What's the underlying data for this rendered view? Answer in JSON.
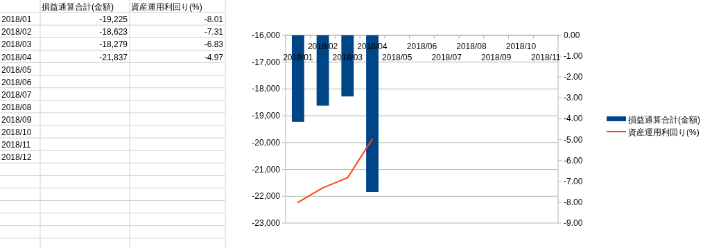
{
  "chart_data": [
    {
      "type": "other",
      "categories": [
        "2018/01",
        "2018/02",
        "2018/03",
        "2018/04",
        "2018/05",
        "2018/06",
        "2018/07",
        "2018/08",
        "2018/09",
        "2018/10",
        "2018/11",
        "2018/12"
      ],
      "series": [
        {
          "name": "損益通算合計(金額)",
          "values": [
            -19225,
            -18623,
            -18279,
            -21837,
            null,
            null,
            null,
            null,
            null,
            null,
            null,
            null
          ],
          "value_labels": [
            "-19,225",
            "-18,623",
            "-18,279",
            "-21,837",
            null,
            null,
            null,
            null,
            null,
            null,
            null,
            null
          ]
        },
        {
          "name": "資産運用利回り(%)",
          "values": [
            -8.01,
            -7.31,
            -6.83,
            -4.97,
            null,
            null,
            null,
            null,
            null,
            null,
            null,
            null
          ],
          "value_labels": [
            "-8.01",
            "-7.31",
            "-6.83",
            "-4.97",
            null,
            null,
            null,
            null,
            null,
            null,
            null,
            null
          ]
        }
      ]
    },
    {
      "type": "bar",
      "categories": [
        "2018/01",
        "2018/02",
        "2018/03",
        "2018/04",
        "2018/05",
        "2018/06",
        "2018/07",
        "2018/08",
        "2018/09",
        "2018/10",
        "2018/11"
      ],
      "series": [
        {
          "name": "損益通算合計(金額)",
          "color": "#004586",
          "values": [
            -19225,
            -18623,
            -18279,
            -21837,
            null,
            null,
            null,
            null,
            null,
            null,
            null
          ]
        },
        {
          "name": "資産運用利回り(%)",
          "type": "line",
          "axis": "y2",
          "color": "#ff420e",
          "values": [
            -8.01,
            -7.31,
            -6.83,
            -4.97,
            null,
            null,
            null,
            null,
            null,
            null,
            null
          ]
        }
      ],
      "ylim": [
        -23000,
        -16000
      ],
      "yticks": [
        {
          "value": -16000,
          "label": "-16,000"
        },
        {
          "value": -17000,
          "label": "-17,000"
        },
        {
          "value": -18000,
          "label": "-18,000"
        },
        {
          "value": -19000,
          "label": "-19,000"
        },
        {
          "value": -20000,
          "label": "-20,000"
        },
        {
          "value": -21000,
          "label": "-21,000"
        },
        {
          "value": -22000,
          "label": "-22,000"
        },
        {
          "value": -23000,
          "label": "-23,000"
        }
      ],
      "y2lim": [
        -9,
        0
      ],
      "y2ticks": [
        {
          "value": 0,
          "label": "0.00"
        },
        {
          "value": -1,
          "label": "-1.00"
        },
        {
          "value": -2,
          "label": "-2.00"
        },
        {
          "value": -3,
          "label": "-3.00"
        },
        {
          "value": -4,
          "label": "-4.00"
        },
        {
          "value": -5,
          "label": "-5.00"
        },
        {
          "value": -6,
          "label": "-6.00"
        },
        {
          "value": -7,
          "label": "-7.00"
        },
        {
          "value": -8,
          "label": "-8.00"
        },
        {
          "value": -9,
          "label": "-9.00"
        }
      ],
      "grid": "y",
      "legend": "right"
    }
  ]
}
